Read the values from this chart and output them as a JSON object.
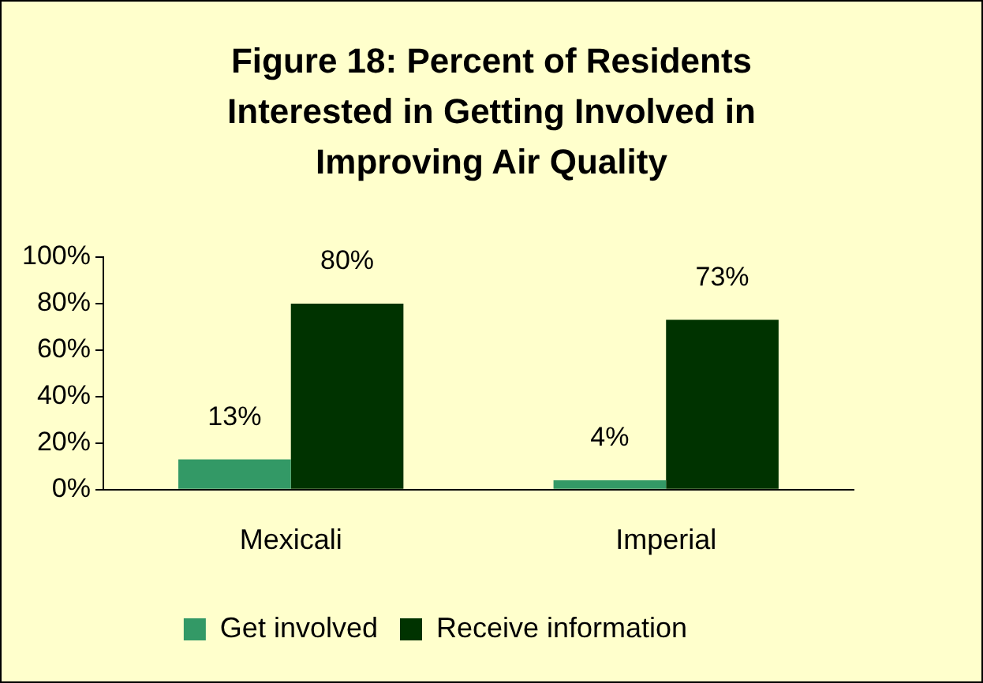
{
  "chart_data": {
    "type": "bar",
    "title": "Figure 18: Percent of Residents Interested in Getting Involved in Improving Air Quality",
    "categories": [
      "Mexicali",
      "Imperial"
    ],
    "series": [
      {
        "name": "Get involved",
        "color": "#339966",
        "values": [
          13,
          4
        ],
        "value_labels": [
          "13%",
          "4%"
        ]
      },
      {
        "name": "Receive information",
        "color": "#003300",
        "values": [
          80,
          73
        ],
        "value_labels": [
          "80%",
          "73%"
        ]
      }
    ],
    "ylim": [
      0,
      100
    ],
    "yticks": [
      {
        "value": 0,
        "label": "0%"
      },
      {
        "value": 20,
        "label": "20%"
      },
      {
        "value": 40,
        "label": "40%"
      },
      {
        "value": 60,
        "label": "60%"
      },
      {
        "value": 80,
        "label": "80%"
      },
      {
        "value": 100,
        "label": "100%"
      }
    ],
    "grid": false,
    "legend": "bottom"
  }
}
